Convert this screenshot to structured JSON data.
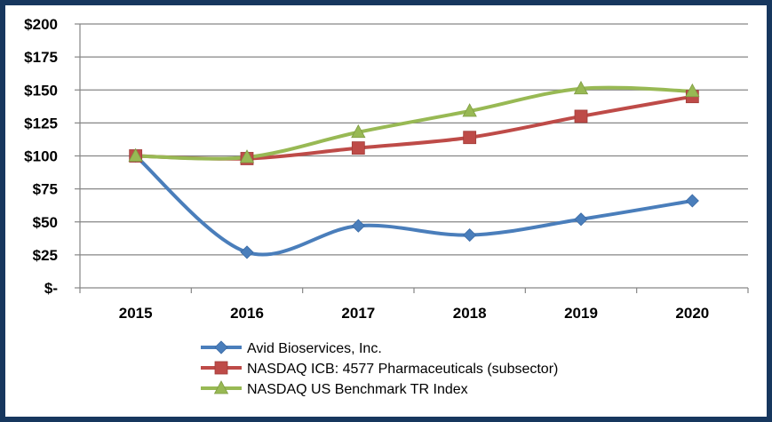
{
  "chart_data": {
    "type": "line",
    "title": "",
    "xlabel": "",
    "ylabel": "",
    "categories": [
      "2015",
      "2016",
      "2017",
      "2018",
      "2019",
      "2020"
    ],
    "ylim": [
      0,
      200
    ],
    "y_ticks": [
      0,
      25,
      50,
      75,
      100,
      125,
      150,
      175,
      200
    ],
    "y_tick_labels": [
      "$-",
      "$25",
      "$50",
      "$75",
      "$100",
      "$125",
      "$150",
      "$175",
      "$200"
    ],
    "grid": true,
    "smoothed": true,
    "legend_position": "bottom",
    "series": [
      {
        "name": "Avid Bioservices, Inc.",
        "color": "#4A7EBB",
        "marker": "diamond",
        "values": [
          100,
          27,
          47,
          40,
          52,
          66
        ]
      },
      {
        "name": "NASDAQ ICB: 4577 Pharmaceuticals (subsector)",
        "color": "#BE4B48",
        "marker": "square",
        "values": [
          100,
          98,
          106,
          114,
          130,
          145
        ]
      },
      {
        "name": "NASDAQ US Benchmark TR Index",
        "color": "#98B954",
        "marker": "triangle",
        "values": [
          100,
          99,
          118,
          134,
          151,
          149
        ]
      }
    ]
  }
}
